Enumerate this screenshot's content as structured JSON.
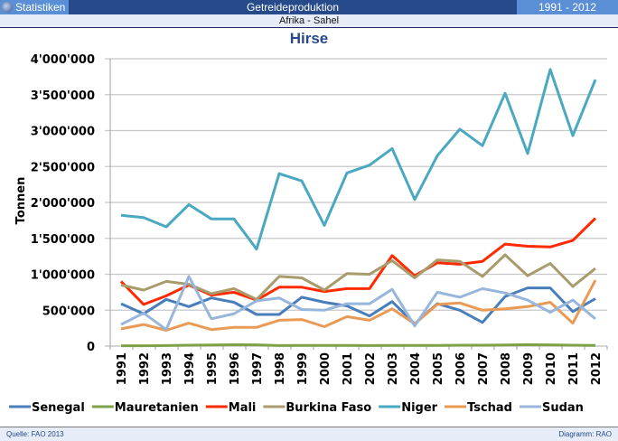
{
  "header": {
    "left_label": "Statistiken",
    "center_title": "Getreideproduktion",
    "year_range": "1991 - 2012",
    "subtitle": "Afrika - Sahel"
  },
  "footer": {
    "source": "Quelle: FAO 2013",
    "credit": "Diagramm: RAO"
  },
  "chart_data": {
    "type": "line",
    "title": "Hirse",
    "xlabel": "",
    "ylabel": "Tonnen",
    "ylim": [
      0,
      4000000
    ],
    "yticks": [
      0,
      500000,
      1000000,
      1500000,
      2000000,
      2500000,
      3000000,
      3500000,
      4000000
    ],
    "ytick_labels": [
      "0",
      "500'000",
      "1'000'000",
      "1'500'000",
      "2'000'000",
      "2'500'000",
      "3'000'000",
      "3'500'000",
      "4'000'000"
    ],
    "grid": true,
    "legend": "bottom",
    "x": [
      "1991",
      "1992",
      "1993",
      "1994",
      "1995",
      "1996",
      "1997",
      "1998",
      "1999",
      "2000",
      "2001",
      "2002",
      "2003",
      "2004",
      "2005",
      "2006",
      "2007",
      "2008",
      "2009",
      "2010",
      "2011",
      "2012"
    ],
    "series": [
      {
        "name": "Senegal",
        "color": "#4a7ebb",
        "values": [
          590000,
          450000,
          650000,
          550000,
          670000,
          610000,
          440000,
          440000,
          680000,
          610000,
          560000,
          420000,
          620000,
          310000,
          590000,
          500000,
          330000,
          690000,
          810000,
          810000,
          480000,
          660000
        ]
      },
      {
        "name": "Mauretanien",
        "color": "#7fa248",
        "values": [
          5000,
          5000,
          8000,
          12000,
          15000,
          20000,
          18000,
          8000,
          10000,
          10000,
          10000,
          8000,
          10000,
          10000,
          10000,
          12000,
          12000,
          15000,
          20000,
          18000,
          12000,
          10000
        ]
      },
      {
        "name": "Mali",
        "color": "#ff2a00",
        "values": [
          900000,
          580000,
          700000,
          850000,
          710000,
          750000,
          640000,
          820000,
          820000,
          760000,
          800000,
          800000,
          1260000,
          980000,
          1160000,
          1140000,
          1180000,
          1420000,
          1390000,
          1380000,
          1470000,
          1780000
        ]
      },
      {
        "name": "Burkina Faso",
        "color": "#a89c6c",
        "values": [
          850000,
          780000,
          900000,
          860000,
          730000,
          800000,
          650000,
          970000,
          950000,
          780000,
          1010000,
          1000000,
          1190000,
          950000,
          1200000,
          1180000,
          970000,
          1270000,
          980000,
          1150000,
          830000,
          1080000
        ]
      },
      {
        "name": "Niger",
        "color": "#4aa8c0",
        "values": [
          1820000,
          1790000,
          1660000,
          1970000,
          1770000,
          1770000,
          1350000,
          2400000,
          2300000,
          1680000,
          2410000,
          2520000,
          2750000,
          2040000,
          2650000,
          3020000,
          2790000,
          3520000,
          2680000,
          3850000,
          2930000,
          3710000
        ]
      },
      {
        "name": "Tschad",
        "color": "#e99a55",
        "values": [
          240000,
          300000,
          220000,
          320000,
          230000,
          260000,
          260000,
          360000,
          370000,
          270000,
          410000,
          360000,
          520000,
          310000,
          580000,
          600000,
          500000,
          520000,
          550000,
          610000,
          320000,
          920000
        ]
      },
      {
        "name": "Sudan",
        "color": "#98b6dc",
        "values": [
          300000,
          460000,
          230000,
          970000,
          380000,
          450000,
          630000,
          670000,
          510000,
          500000,
          590000,
          590000,
          790000,
          280000,
          750000,
          680000,
          800000,
          740000,
          640000,
          470000,
          640000,
          380000
        ]
      }
    ]
  }
}
